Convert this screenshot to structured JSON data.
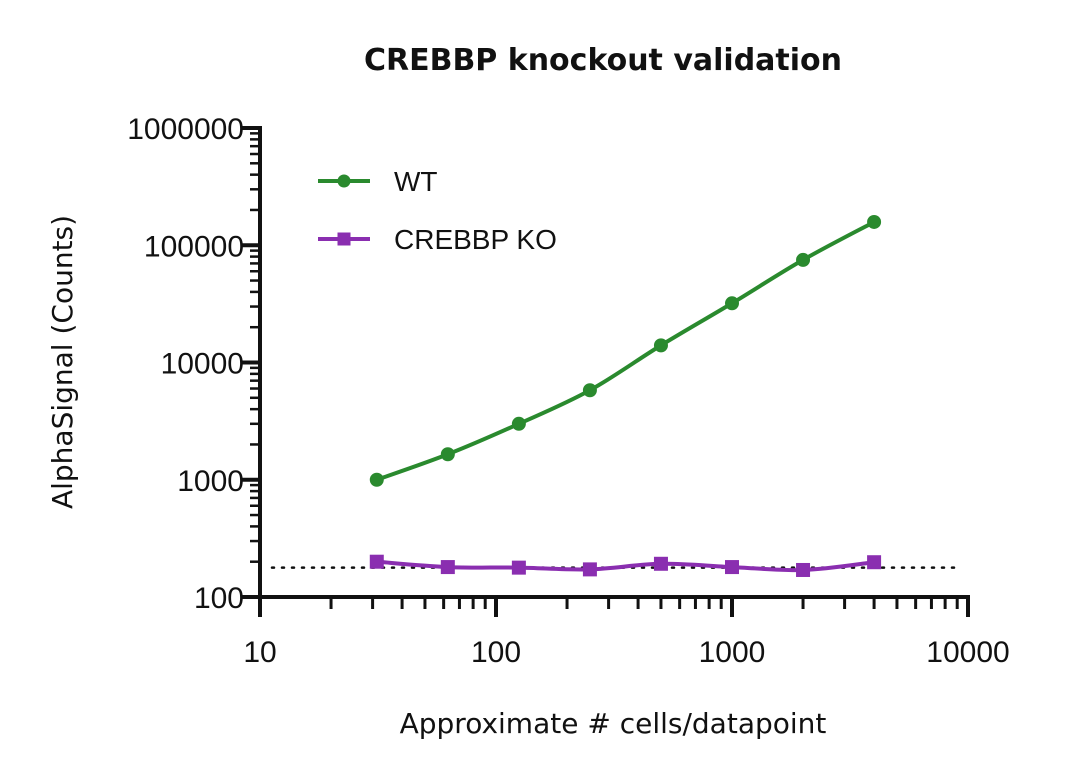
{
  "chart_data": {
    "type": "line",
    "title": "CREBBP knockout validation",
    "xlabel": "Approximate # cells/datapoint",
    "ylabel": "AlphaSignal (Counts)",
    "xscale": "log",
    "yscale": "log",
    "xlim": [
      10,
      10000
    ],
    "ylim": [
      100,
      1000000
    ],
    "x_ticks": [
      "10",
      "100",
      "1000",
      "10000"
    ],
    "y_ticks": [
      "100",
      "1000",
      "10000",
      "100000",
      "1000000"
    ],
    "legend_position": "top-left",
    "grid": false,
    "x": [
      31.25,
      62.5,
      125,
      250,
      500,
      1000,
      2000,
      4000
    ],
    "series": [
      {
        "name": "WT",
        "marker": "circle",
        "color": "#2a8a2e",
        "values": [
          1000,
          1650,
          3000,
          5800,
          14000,
          32000,
          75000,
          158000
        ]
      },
      {
        "name": "CREBBP KO",
        "marker": "square",
        "color": "#8a2eb0",
        "values": [
          200,
          180,
          178,
          172,
          192,
          180,
          170,
          198
        ]
      }
    ],
    "reference_line": {
      "style": "dotted",
      "color": "#111111",
      "y": 178
    }
  }
}
